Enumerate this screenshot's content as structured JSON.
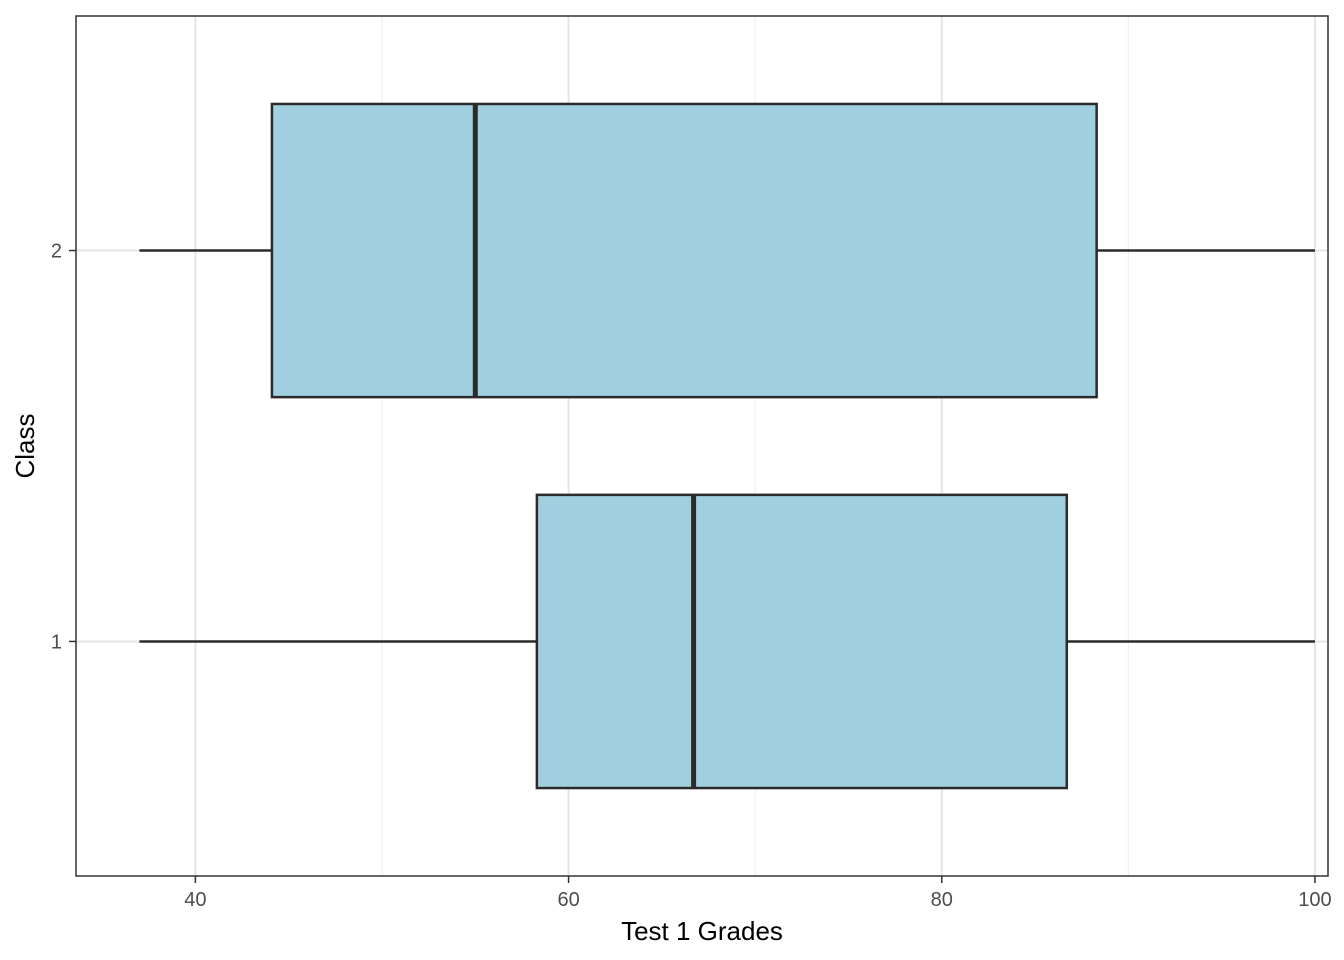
{
  "chart_data": {
    "type": "boxplot",
    "orientation": "horizontal",
    "xlabel": "Test 1 Grades",
    "ylabel": "Class",
    "xlim": [
      33.6,
      100.7
    ],
    "x_ticks": [
      40,
      60,
      80,
      100
    ],
    "x_minor_grid": [
      50,
      70,
      90
    ],
    "categories": [
      "1",
      "2"
    ],
    "series": [
      {
        "category": "1",
        "min": 37,
        "q1": 58.3,
        "median": 66.7,
        "q3": 86.7,
        "max": 100
      },
      {
        "category": "2",
        "min": 37,
        "q1": 44.1,
        "median": 55,
        "q3": 88.3,
        "max": 100
      }
    ],
    "grid": true,
    "legend": "none",
    "colors": {
      "box_fill": "#A0CFE0",
      "box_stroke": "#2b2b2b",
      "grid_major": "#e5e5e5",
      "grid_minor": "#f0f0f0",
      "panel_border": "#333333",
      "tick": "#333333"
    }
  }
}
